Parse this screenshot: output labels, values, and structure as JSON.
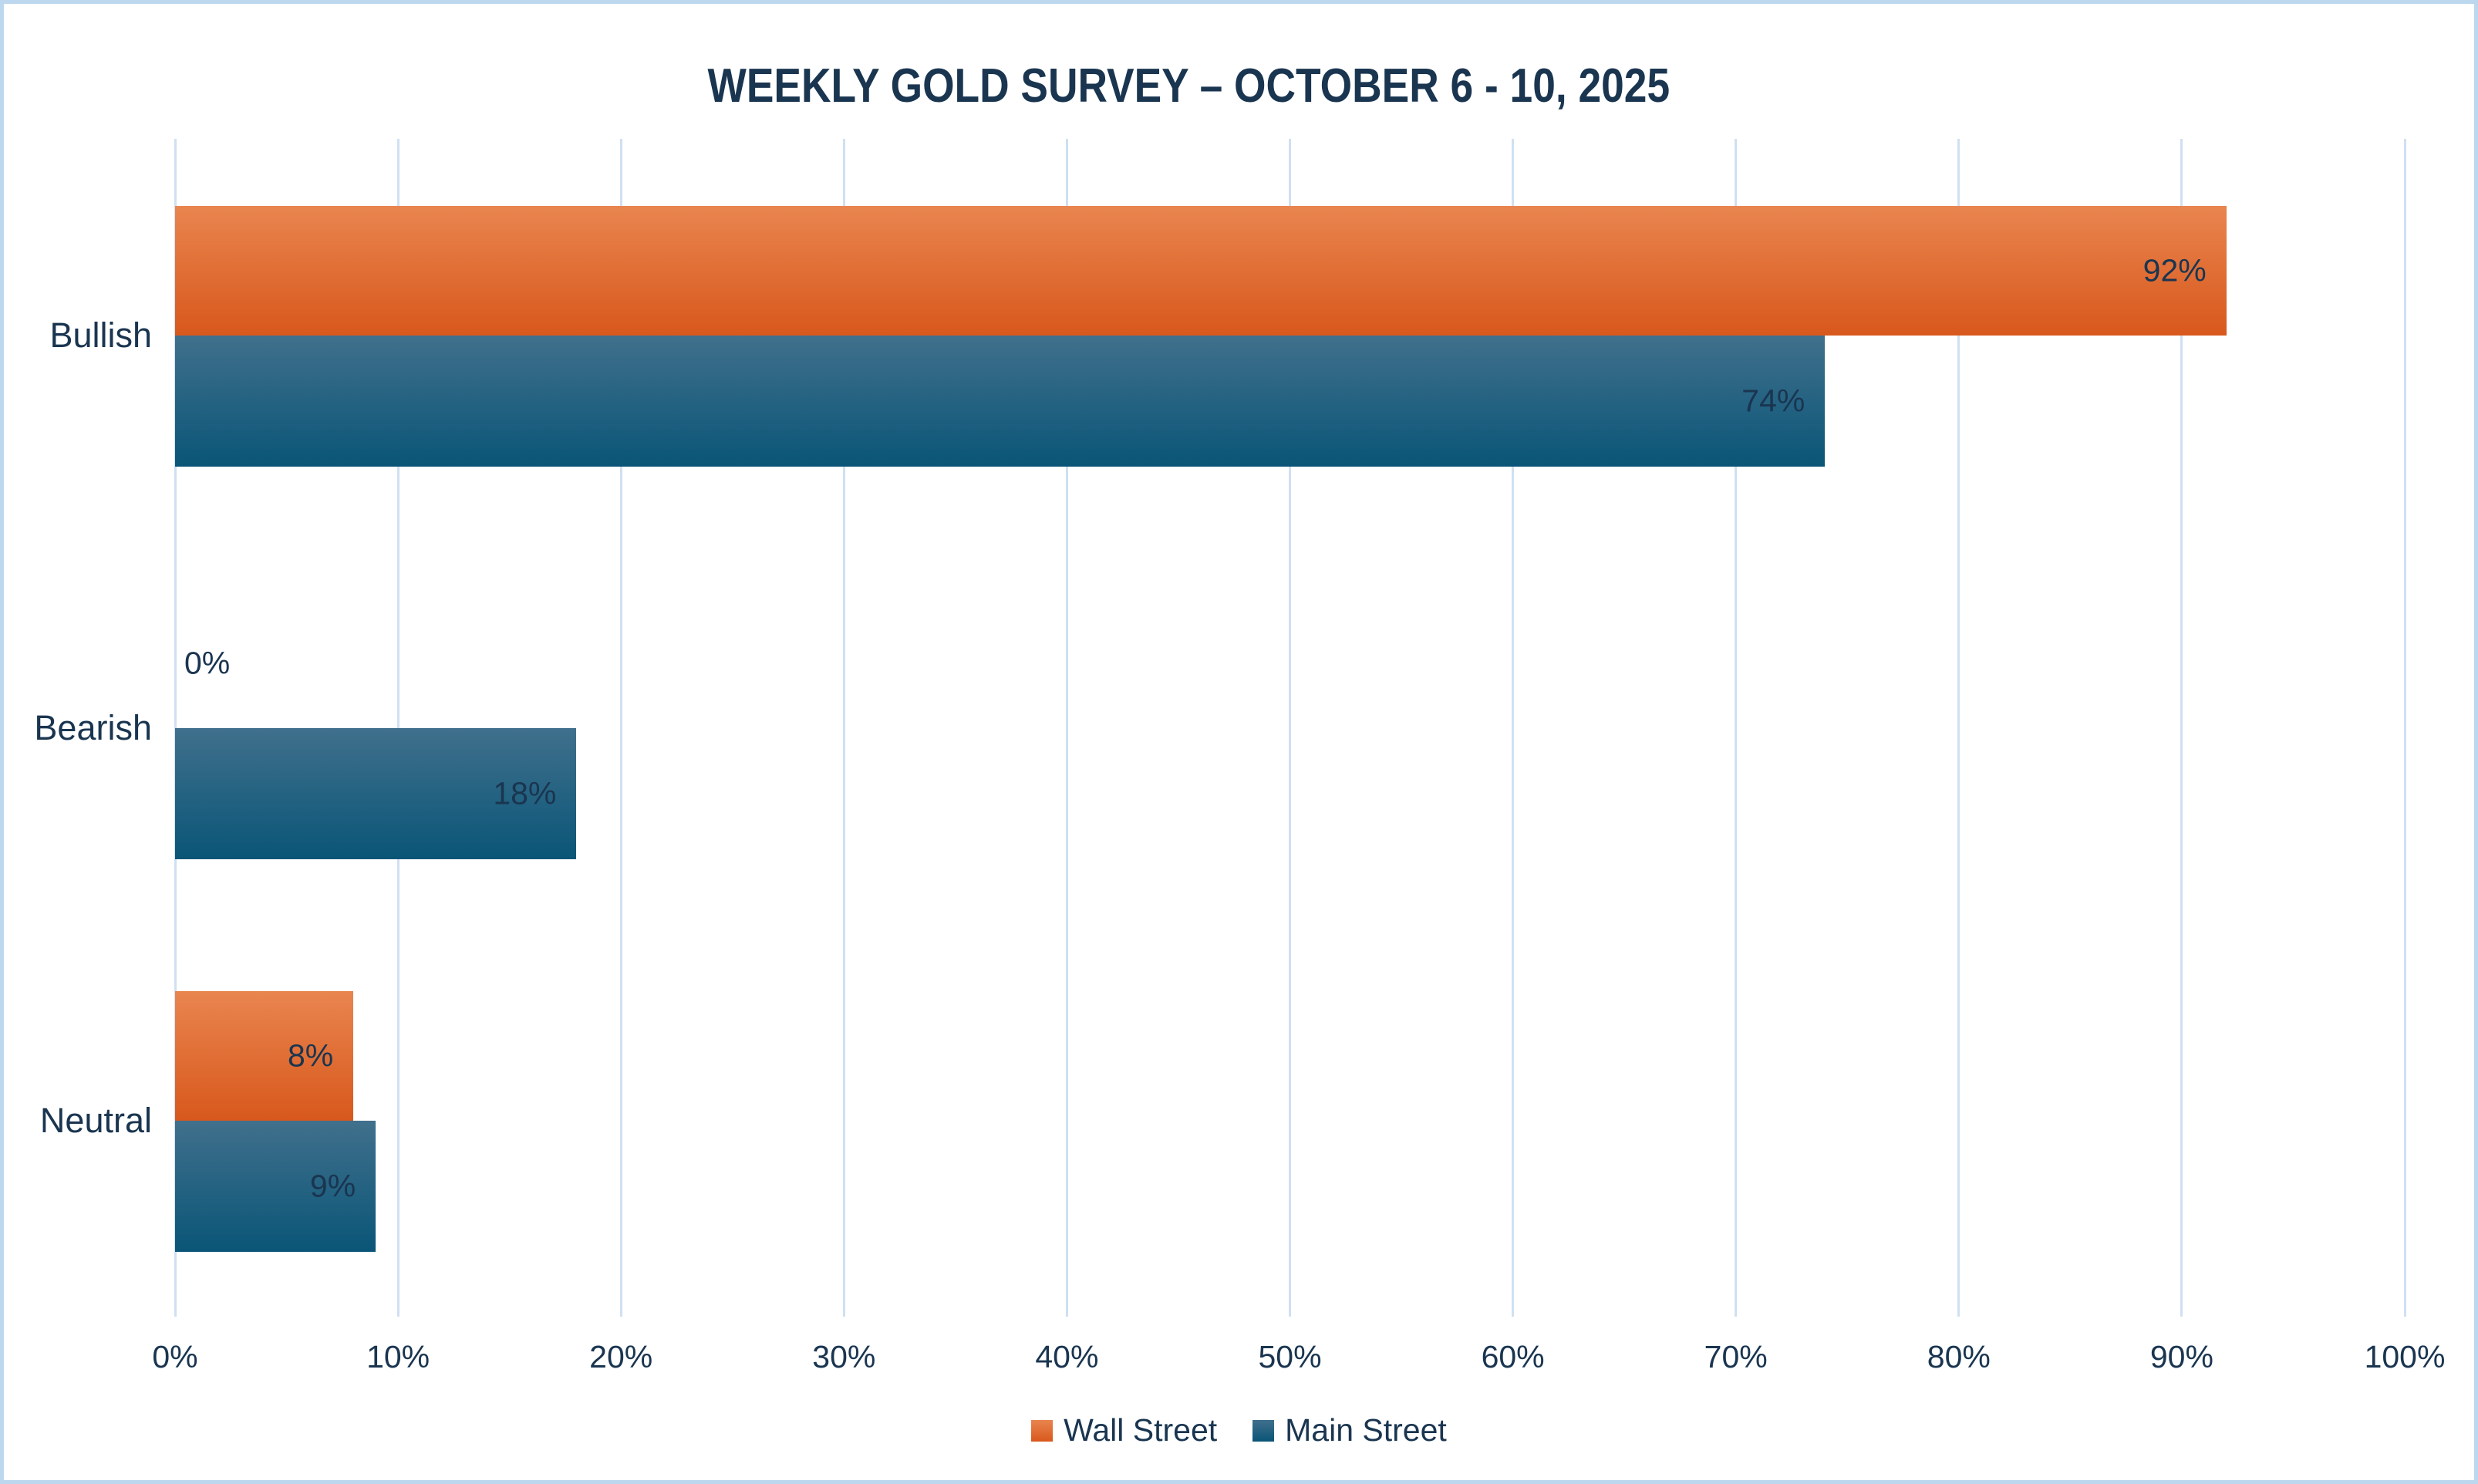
{
  "chart_data": {
    "type": "bar",
    "orientation": "horizontal",
    "title": "WEEKLY GOLD SURVEY – OCTOBER 6 - 10, 2025",
    "categories": [
      "Bullish",
      "Bearish",
      "Neutral"
    ],
    "series": [
      {
        "name": "Wall Street",
        "color_top": "#e9854f",
        "color_bottom": "#d8581c",
        "values": [
          92,
          0,
          8
        ]
      },
      {
        "name": "Main Street",
        "color_top": "#40708c",
        "color_bottom": "#0a5577",
        "values": [
          74,
          18,
          9
        ]
      }
    ],
    "xlim": [
      0,
      100
    ],
    "x_tick_step": 10,
    "x_tick_suffix": "%",
    "data_label_suffix": "%",
    "grid": "vertical",
    "legend_position": "bottom"
  },
  "colors": {
    "text": "#1a3550",
    "grid": "#cfe0f2",
    "border": "#bdd7ee",
    "background": "#ffffff"
  }
}
